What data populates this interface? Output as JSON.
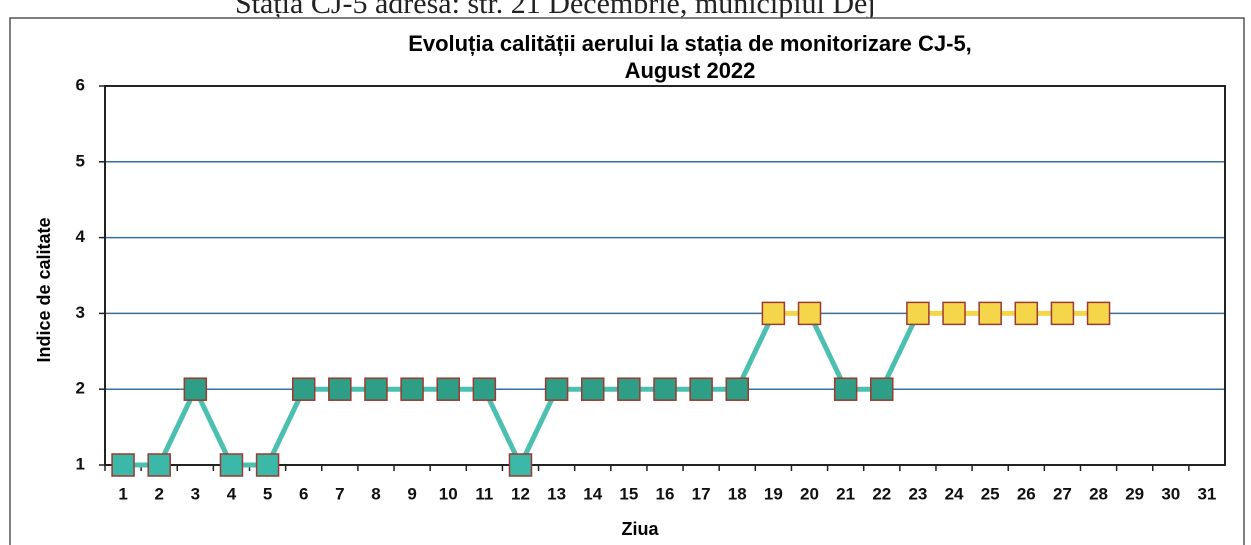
{
  "header": "Stația CJ-5 adresa: str. 21 Decembrie, municipiul Dej",
  "chart_data": {
    "type": "line",
    "title": [
      "Evoluția calității aerului la stația de monitorizare CJ-5,",
      "August 2022"
    ],
    "x_label": "Ziua",
    "y_label": "Indice de calitate",
    "categories": [
      "1",
      "2",
      "3",
      "4",
      "5",
      "6",
      "7",
      "8",
      "9",
      "10",
      "11",
      "12",
      "13",
      "14",
      "15",
      "16",
      "17",
      "18",
      "19",
      "20",
      "21",
      "22",
      "23",
      "24",
      "25",
      "26",
      "27",
      "28",
      "29",
      "30",
      "31"
    ],
    "series": [
      {
        "color": "#4cc0b0",
        "values": [
          1,
          1,
          2,
          1,
          1,
          2,
          2,
          2,
          2,
          2,
          2,
          1,
          2,
          2,
          2,
          2,
          2,
          2,
          3,
          3,
          2,
          2,
          3,
          3,
          3,
          3,
          3,
          3,
          null,
          null,
          null
        ],
        "point_colors": [
          "#3cb8a8",
          "#3cb8a8",
          "#2e9e86",
          "#3cb8a8",
          "#3cb8a8",
          "#2e9e86",
          "#2e9e86",
          "#2e9e86",
          "#2e9e86",
          "#2e9e86",
          "#2e9e86",
          "#3cb8a8",
          "#2e9e86",
          "#2e9e86",
          "#2e9e86",
          "#2e9e86",
          "#2e9e86",
          "#2e9e86",
          "#f5d54a",
          "#f5d54a",
          "#2e9e86",
          "#2e9e86",
          "#f5d54a",
          "#f5d54a",
          "#f5d54a",
          "#f5d54a",
          "#f5d54a",
          "#f5d54a",
          null,
          null,
          null
        ]
      }
    ],
    "ylim": [
      1,
      6
    ],
    "yticks": [
      1,
      2,
      3,
      4,
      5,
      6
    ],
    "grid": true
  }
}
